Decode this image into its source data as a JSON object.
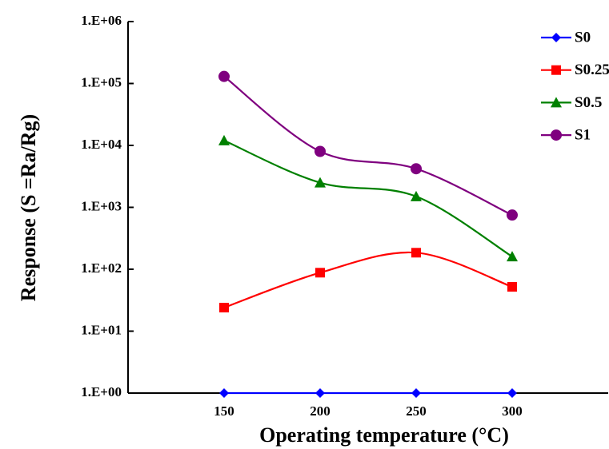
{
  "chart_data": {
    "type": "line",
    "x_label": "Operating temperature (°C)",
    "y_label": "Response (S =Ra/Rg)",
    "x": [
      150,
      200,
      250,
      300
    ],
    "xlim": [
      100,
      350
    ],
    "xticks": [
      150,
      200,
      250,
      300
    ],
    "ylim": [
      1,
      1000000
    ],
    "yscale": "log",
    "yticks": [
      {
        "value": 1,
        "label": "1.E+00"
      },
      {
        "value": 10,
        "label": "1.E+01"
      },
      {
        "value": 100,
        "label": "1.E+02"
      },
      {
        "value": 1000,
        "label": "1.E+03"
      },
      {
        "value": 10000,
        "label": "1.E+04"
      },
      {
        "value": 100000,
        "label": "1.E+05"
      },
      {
        "value": 1000000,
        "label": "1.E+06"
      }
    ],
    "smooth": true,
    "legend": "upper right",
    "series": [
      {
        "name": "S0",
        "color": "#0000ff",
        "marker": "diamond",
        "values": [
          1,
          1,
          1,
          1
        ]
      },
      {
        "name": "S0.25",
        "color": "#ff0000",
        "marker": "square",
        "values": [
          24,
          88,
          185,
          52
        ]
      },
      {
        "name": "S0.5",
        "color": "#008000",
        "marker": "triangle",
        "values": [
          12000,
          2500,
          1500,
          160
        ]
      },
      {
        "name": "S1",
        "color": "#7f007f",
        "marker": "circle",
        "values": [
          130000,
          8000,
          4200,
          750
        ]
      }
    ]
  }
}
